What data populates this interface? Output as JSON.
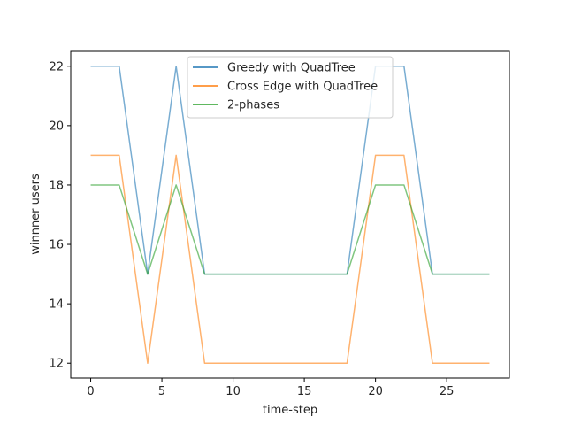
{
  "chart_data": {
    "type": "line",
    "title": "",
    "xlabel": "time-step",
    "ylabel": "winnner users",
    "xlim": [
      -1.4,
      29.4
    ],
    "ylim": [
      11.5,
      22.5
    ],
    "xticks": [
      0,
      5,
      10,
      15,
      20,
      25
    ],
    "yticks": [
      12,
      14,
      16,
      18,
      20,
      22
    ],
    "grid": false,
    "legend_position": "top-center",
    "x": [
      0,
      2,
      4,
      6,
      8,
      10,
      12,
      14,
      16,
      18,
      20,
      22,
      24,
      26,
      28
    ],
    "series": [
      {
        "name": "Greedy with QuadTree",
        "color": "#1f77b4",
        "values": [
          22,
          22,
          15,
          22,
          15,
          15,
          15,
          15,
          15,
          15,
          22,
          22,
          15,
          15,
          15
        ]
      },
      {
        "name": "Cross Edge with QuadTree",
        "color": "#ff7f0e",
        "values": [
          19,
          19,
          12,
          19,
          12,
          12,
          12,
          12,
          12,
          12,
          19,
          19,
          12,
          12,
          12
        ]
      },
      {
        "name": "2-phases",
        "color": "#2ca02c",
        "values": [
          18,
          18,
          15,
          18,
          15,
          15,
          15,
          15,
          15,
          15,
          18,
          18,
          15,
          15,
          15
        ]
      }
    ]
  }
}
